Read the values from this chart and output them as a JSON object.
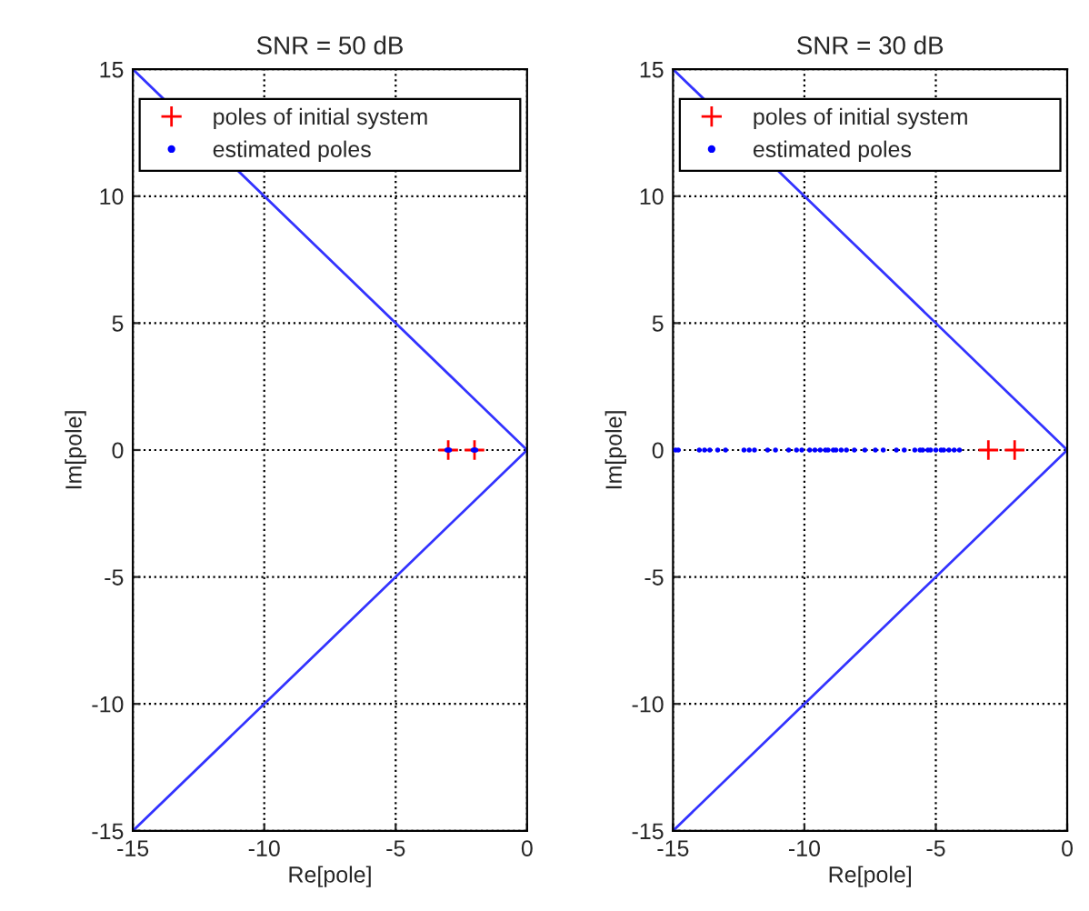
{
  "chart_data": [
    {
      "type": "scatter",
      "title": "SNR = 50 dB",
      "xlabel": "Re[pole]",
      "ylabel": "Im[pole]",
      "xlim": [
        -15,
        0
      ],
      "ylim": [
        -15,
        15
      ],
      "xticks": [
        -15,
        -10,
        -5,
        0
      ],
      "yticks": [
        -15,
        -10,
        -5,
        0,
        5,
        10,
        15
      ],
      "grid": true,
      "legend": "top",
      "series": [
        {
          "type": "line",
          "color": "#3333ff",
          "marker": "none",
          "line_style": "solid",
          "x": [
            -15,
            0,
            -15
          ],
          "values": [
            15,
            0,
            -15
          ]
        },
        {
          "name": "poles of initial system",
          "color": "#ff0000",
          "marker": "cross",
          "x": [
            -3,
            -2
          ],
          "values": [
            0,
            0
          ]
        },
        {
          "name": "estimated poles",
          "color": "#0000ff",
          "marker": "circle",
          "x": [
            -3.05,
            -3,
            -2.95,
            -2.05,
            -2,
            -1.95
          ],
          "values": [
            0,
            0,
            0,
            0,
            0,
            0
          ]
        }
      ]
    },
    {
      "type": "scatter",
      "title": "SNR = 30 dB",
      "xlabel": "Re[pole]",
      "ylabel": "Im[pole]",
      "xlim": [
        -15,
        0
      ],
      "ylim": [
        -15,
        15
      ],
      "xticks": [
        -15,
        -10,
        -5,
        0
      ],
      "yticks": [
        -15,
        -10,
        -5,
        0,
        5,
        10,
        15
      ],
      "grid": true,
      "legend": "top",
      "series": [
        {
          "type": "line",
          "color": "#3333ff",
          "marker": "none",
          "line_style": "solid",
          "x": [
            -15,
            0,
            -15
          ],
          "values": [
            15,
            0,
            -15
          ]
        },
        {
          "name": "poles of initial system",
          "color": "#ff0000",
          "marker": "cross",
          "x": [
            -3,
            -2
          ],
          "values": [
            0,
            0
          ]
        },
        {
          "name": "estimated poles",
          "color": "#0000ff",
          "marker": "circle",
          "x": [
            -14.9,
            -14.8,
            -14.0,
            -13.8,
            -13.6,
            -13.3,
            -13.0,
            -12.3,
            -12.1,
            -11.9,
            -11.4,
            -11.1,
            -10.6,
            -10.3,
            -10.1,
            -9.8,
            -9.6,
            -9.4,
            -9.2,
            -9.1,
            -8.9,
            -8.8,
            -8.6,
            -8.4,
            -8.1,
            -7.7,
            -7.3,
            -7.0,
            -6.5,
            -6.2,
            -5.8,
            -5.6,
            -5.5,
            -5.3,
            -5.2,
            -5.0,
            -4.8,
            -4.7,
            -4.5,
            -4.3,
            -4.1
          ],
          "values": [
            0,
            0,
            0,
            0,
            0,
            0,
            0,
            0,
            0,
            0,
            0,
            0,
            0,
            0,
            0,
            0,
            0,
            0,
            0,
            0,
            0,
            0,
            0,
            0,
            0,
            0,
            0,
            0,
            0,
            0,
            0,
            0,
            0,
            0,
            0,
            0,
            0,
            0,
            0,
            0,
            0
          ]
        }
      ]
    }
  ]
}
